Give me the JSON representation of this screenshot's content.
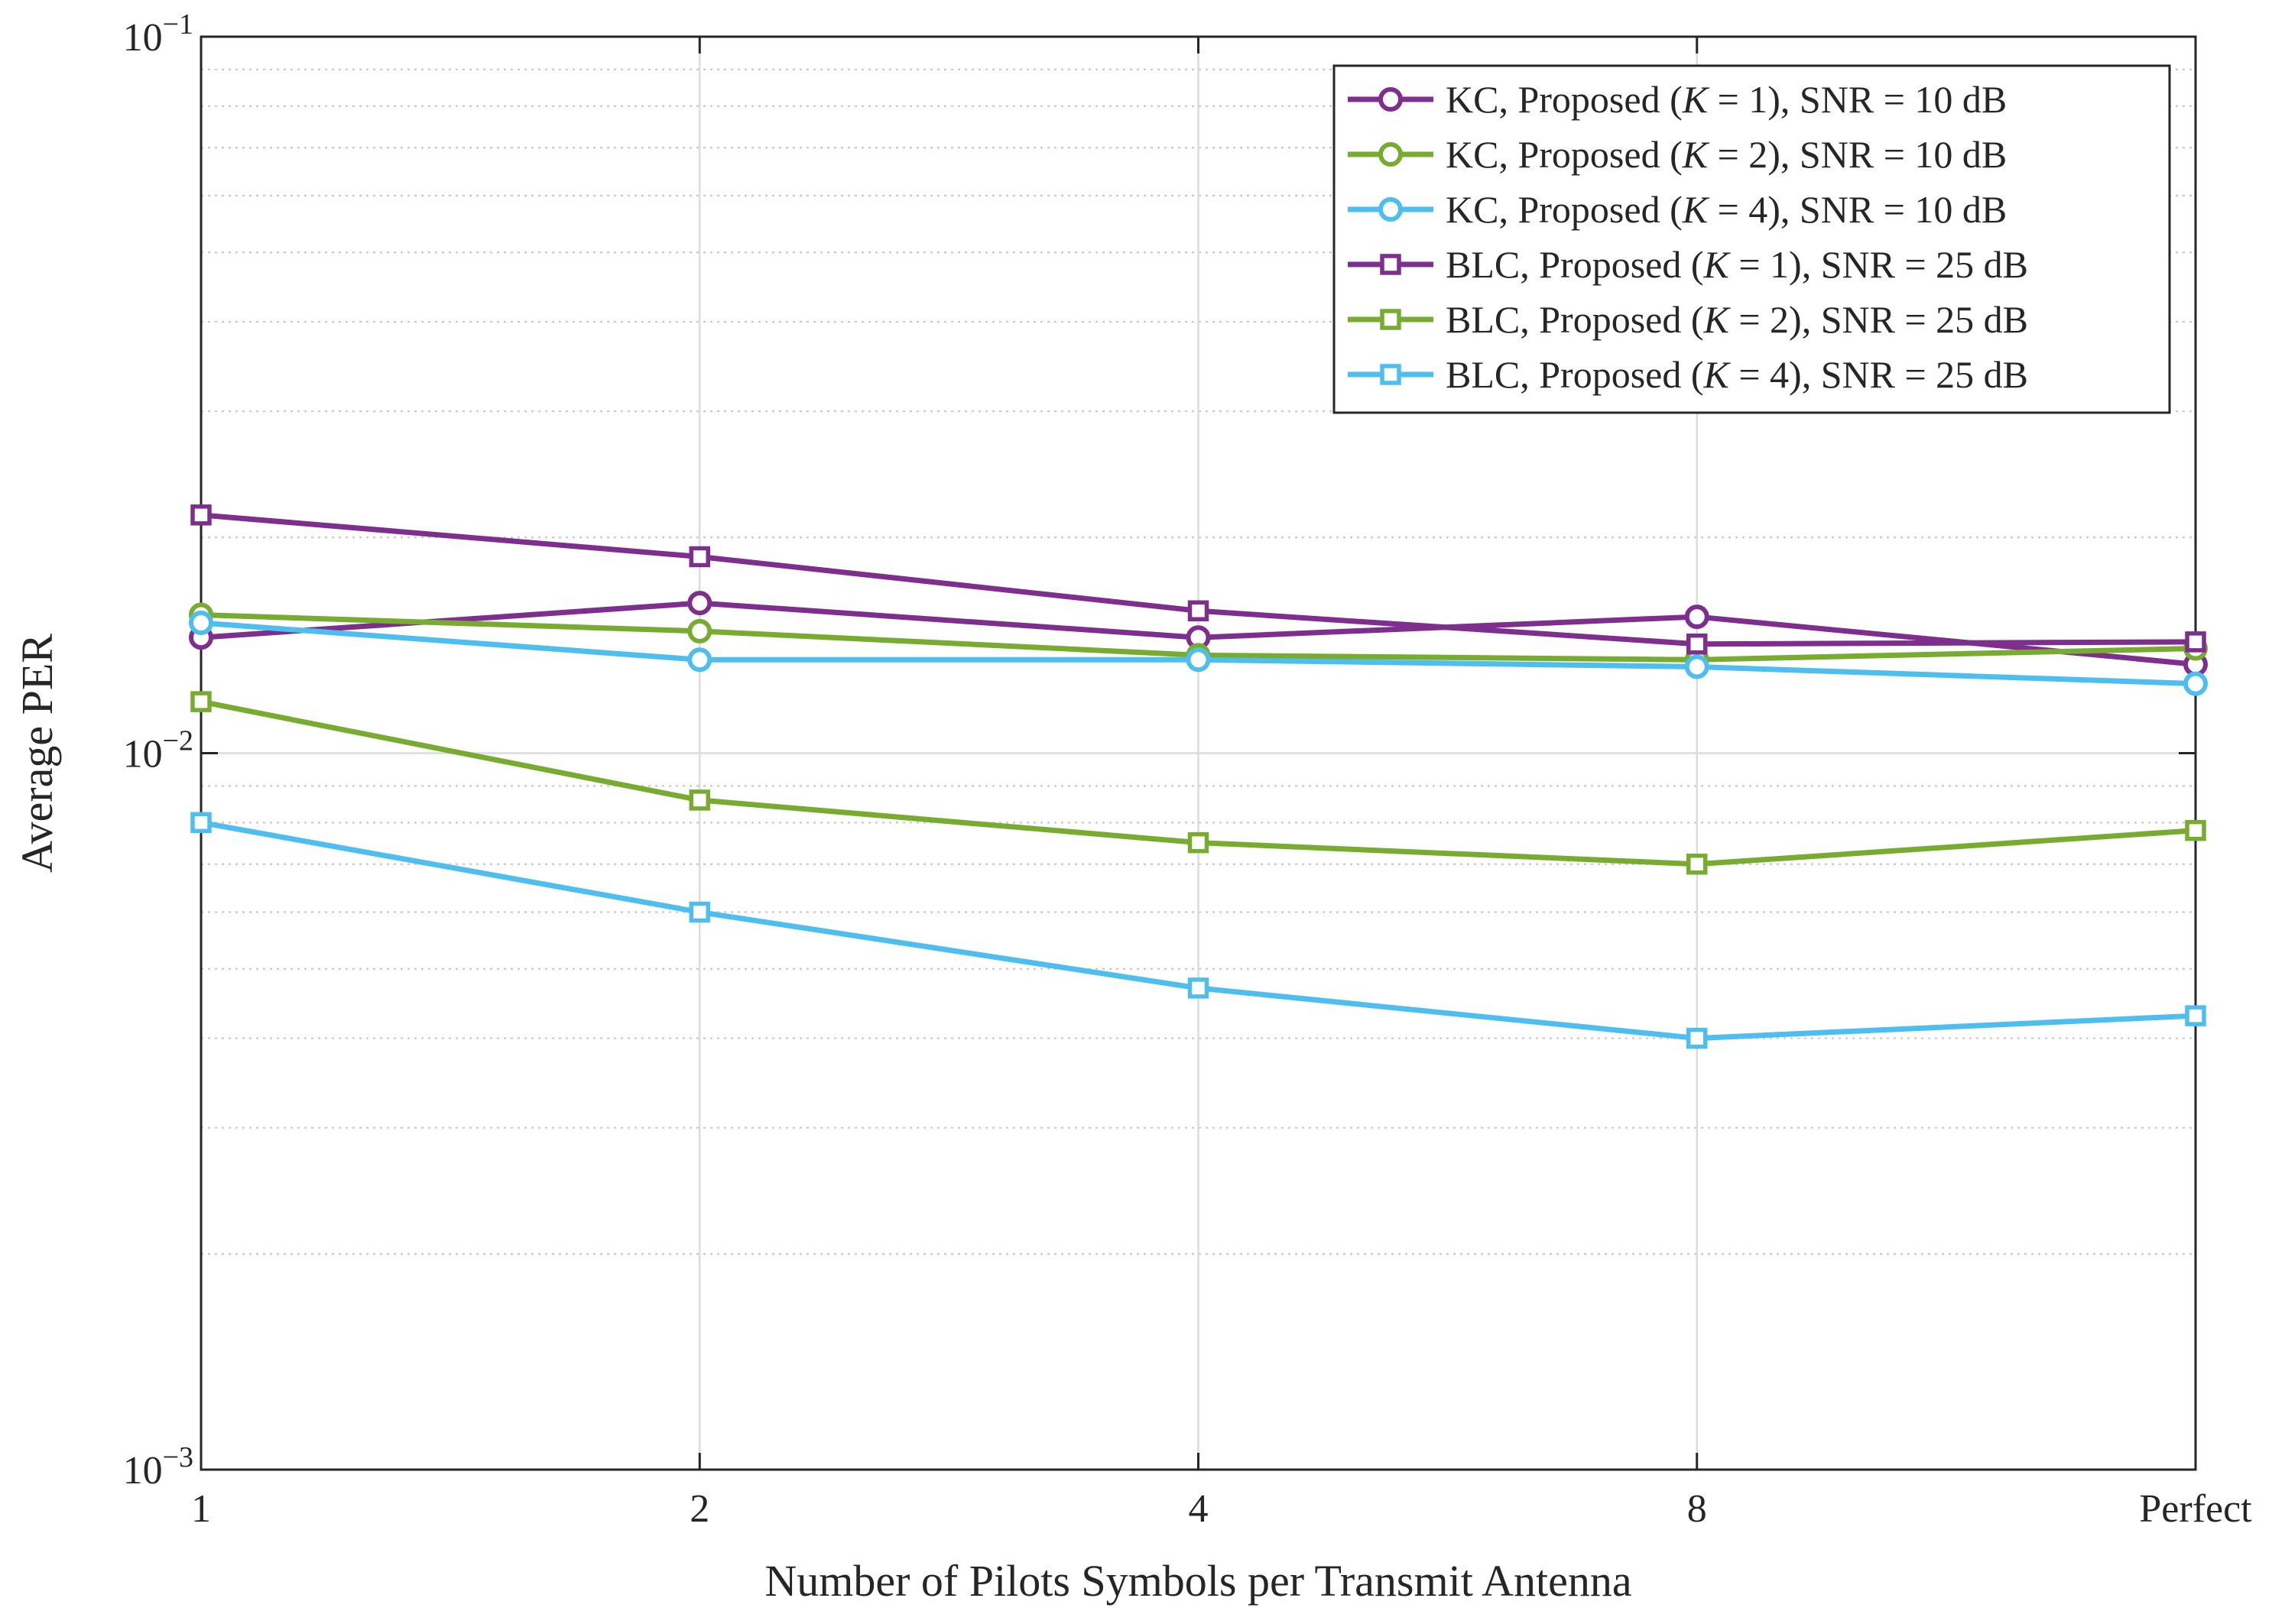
{
  "chart_data": {
    "type": "line",
    "title": "",
    "xlabel": "Number of Pilots Symbols per Transmit Antenna",
    "ylabel": "Average PER",
    "categories": [
      "1",
      "2",
      "4",
      "8",
      "Perfect"
    ],
    "yscale": "log",
    "ylim": [
      0.001,
      0.1
    ],
    "yticks": [
      {
        "base": "10",
        "exp": "−1"
      },
      {
        "base": "10",
        "exp": "−2"
      },
      {
        "base": "10",
        "exp": "−3"
      }
    ],
    "grid": true,
    "legend_position": "top-right",
    "series": [
      {
        "name_parts": [
          "KC, Proposed (",
          "K",
          " = 1), SNR = 10 dB"
        ],
        "marker": "circle",
        "color": "#7E2F8E",
        "values": [
          0.0145,
          0.0162,
          0.0145,
          0.0155,
          0.0133
        ]
      },
      {
        "name_parts": [
          "KC, Proposed (",
          "K",
          " = 2), SNR = 10 dB"
        ],
        "marker": "circle",
        "color": "#77AC30",
        "values": [
          0.0156,
          0.0148,
          0.0137,
          0.0135,
          0.014
        ]
      },
      {
        "name_parts": [
          "KC, Proposed (",
          "K",
          " = 4), SNR = 10 dB"
        ],
        "marker": "circle",
        "color": "#4DBEEE",
        "values": [
          0.0152,
          0.0135,
          0.0135,
          0.0132,
          0.0125
        ]
      },
      {
        "name_parts": [
          "BLC, Proposed (",
          "K",
          " = 1), SNR = 25 dB"
        ],
        "marker": "square",
        "color": "#7E2F8E",
        "values": [
          0.0215,
          0.0188,
          0.0158,
          0.0142,
          0.0143
        ]
      },
      {
        "name_parts": [
          "BLC, Proposed (",
          "K",
          " = 2), SNR = 25 dB"
        ],
        "marker": "square",
        "color": "#77AC30",
        "values": [
          0.0118,
          0.0086,
          0.0075,
          0.007,
          0.0078
        ]
      },
      {
        "name_parts": [
          "BLC, Proposed (",
          "K",
          " = 4), SNR = 25 dB"
        ],
        "marker": "square",
        "color": "#4DBEEE",
        "values": [
          0.008,
          0.006,
          0.0047,
          0.004,
          0.0043
        ]
      }
    ]
  }
}
